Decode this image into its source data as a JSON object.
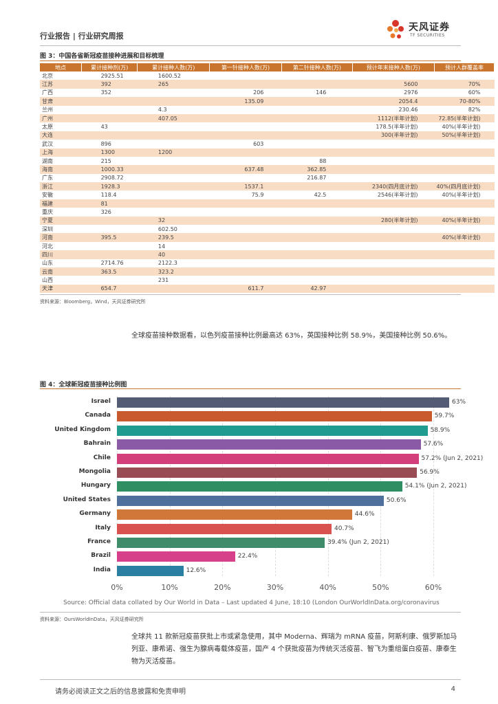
{
  "header": {
    "crumb": "行业报告 | 行业研究周报",
    "logo_name": "天风证券",
    "logo_sub": "TF SECURITIES"
  },
  "fig3": {
    "title": "图 3：中国各省新冠疫苗接种进展和目标梳理",
    "columns": [
      "地点",
      "累计接种剂(万)",
      "累计接种人数(万)",
      "第一针接种人数(万)",
      "第二针接种人数(万)",
      "预计年末接种人数(万)",
      "预计人群覆盖率"
    ],
    "rows": [
      [
        "北京",
        "2925.51",
        "1600.52",
        "",
        "",
        "",
        ""
      ],
      [
        "江苏",
        "392",
        "265",
        "",
        "",
        "5600",
        "70%"
      ],
      [
        "广西",
        "352",
        "",
        "206",
        "146",
        "2976",
        "60%"
      ],
      [
        "甘肃",
        "",
        "",
        "135.09",
        "",
        "2054.4",
        "70-80%"
      ],
      [
        "兰州",
        "",
        "4.3",
        "",
        "",
        "230.46",
        "82%"
      ],
      [
        "广州",
        "",
        "407.05",
        "",
        "",
        "1112(半年计划)",
        "72.85(半年计划)"
      ],
      [
        "太原",
        "43",
        "",
        "",
        "",
        "178.5(半年计划)",
        "40%(半年计划)"
      ],
      [
        "大连",
        "",
        "",
        "",
        "",
        "300(半年计划)",
        "50%(半年计划)"
      ],
      [
        "武汉",
        "896",
        "",
        "603",
        "",
        "",
        ""
      ],
      [
        "上海",
        "1300",
        "1200",
        "",
        "",
        "",
        ""
      ],
      [
        "湖南",
        "215",
        "",
        "",
        "88",
        "",
        ""
      ],
      [
        "海南",
        "1000.33",
        "",
        "637.48",
        "362.85",
        "",
        ""
      ],
      [
        "广东",
        "2908.72",
        "",
        "",
        "216.87",
        "",
        ""
      ],
      [
        "浙江",
        "1928.3",
        "",
        "1537.1",
        "",
        "2340(四月底计划)",
        "40%(四月底计划)"
      ],
      [
        "安徽",
        "118.4",
        "",
        "75.9",
        "42.5",
        "2546(半年计划)",
        "40%(半年计划)"
      ],
      [
        "福建",
        "81",
        "",
        "",
        "",
        "",
        ""
      ],
      [
        "重庆",
        "326",
        "",
        "",
        "",
        "",
        ""
      ],
      [
        "宁夏",
        "",
        "32",
        "",
        "",
        "280(半年计划)",
        "40%(半年计划)"
      ],
      [
        "深圳",
        "",
        "602.50",
        "",
        "",
        "",
        ""
      ],
      [
        "河南",
        "395.5",
        "239.5",
        "",
        "",
        "",
        "40%(半年计划)"
      ],
      [
        "河北",
        "",
        "14",
        "",
        "",
        "",
        ""
      ],
      [
        "四川",
        "",
        "40",
        "",
        "",
        "",
        ""
      ],
      [
        "山东",
        "2714.76",
        "2122.3",
        "",
        "",
        "",
        ""
      ],
      [
        "云南",
        "363.5",
        "323.2",
        "",
        "",
        "",
        ""
      ],
      [
        "山西",
        "",
        "231",
        "",
        "",
        "",
        ""
      ],
      [
        "天津",
        "654.7",
        "",
        "611.7",
        "42.97",
        "",
        ""
      ]
    ],
    "source": "资料来源：Bloomberg，Wind，天风证券研究所"
  },
  "para1": "全球疫苗接种数据看，以色列疫苗接种比例最高达 63%，英国接种比例 58.9%，美国接种比例 50.6%。",
  "fig4": {
    "title": "图 4：全球新冠疫苗接种比例图",
    "source": "资料来源：OursWorldInData，天风证券研究所"
  },
  "chart_data": {
    "type": "bar",
    "orientation": "horizontal",
    "title": "",
    "categories": [
      "Israel",
      "Canada",
      "United Kingdom",
      "Bahrain",
      "Chile",
      "Mongolia",
      "Hungary",
      "United States",
      "Germany",
      "Italy",
      "France",
      "Brazil",
      "India"
    ],
    "values": [
      63,
      59.7,
      58.9,
      57.6,
      57.2,
      56.9,
      54.1,
      50.6,
      44.6,
      40.7,
      39.4,
      22.4,
      12.6
    ],
    "value_labels": [
      "63%",
      "59.7%",
      "58.9%",
      "57.6%",
      "57.2% (Jun 2, 2021)",
      "56.9%",
      "54.1% (Jun 2, 2021)",
      "50.6%",
      "44.6%",
      "40.7%",
      "39.4% (Jun 2, 2021)",
      "22.4%",
      "12.6%"
    ],
    "colors": [
      "#545b75",
      "#c85a2e",
      "#1f9c8f",
      "#8a5aa6",
      "#d23f7a",
      "#9a4c55",
      "#2f8f63",
      "#4f6f9c",
      "#d0783a",
      "#d9524f",
      "#3f8c6a",
      "#d6408a",
      "#2b7fa0"
    ],
    "xticks": [
      "0%",
      "10%",
      "20%",
      "30%",
      "40%",
      "50%",
      "60%"
    ],
    "xlim": [
      0,
      60
    ],
    "source_note": "Source: Official data collated by Our World in Data – Last updated 4 June, 18:10 (London OurWorldInData.org/coronavirus"
  },
  "para2": "全球共 11 款新冠疫苗获批上市或紧急使用，其中 Moderna、辉瑞为 mRNA 疫苗，阿斯利康、俄罗斯加马列亚、康希诺、强生为腺病毒载体疫苗，国产 4 个获批疫苗为传统灭活疫苗、智飞为重组蛋白疫苗、康泰生物为灭活疫苗。",
  "footer": {
    "text": "请务必阅读正文之后的信息披露和免责申明",
    "page": "4"
  },
  "colors": {
    "accent": "#c9752d",
    "stripe": "#f9dcc4"
  }
}
